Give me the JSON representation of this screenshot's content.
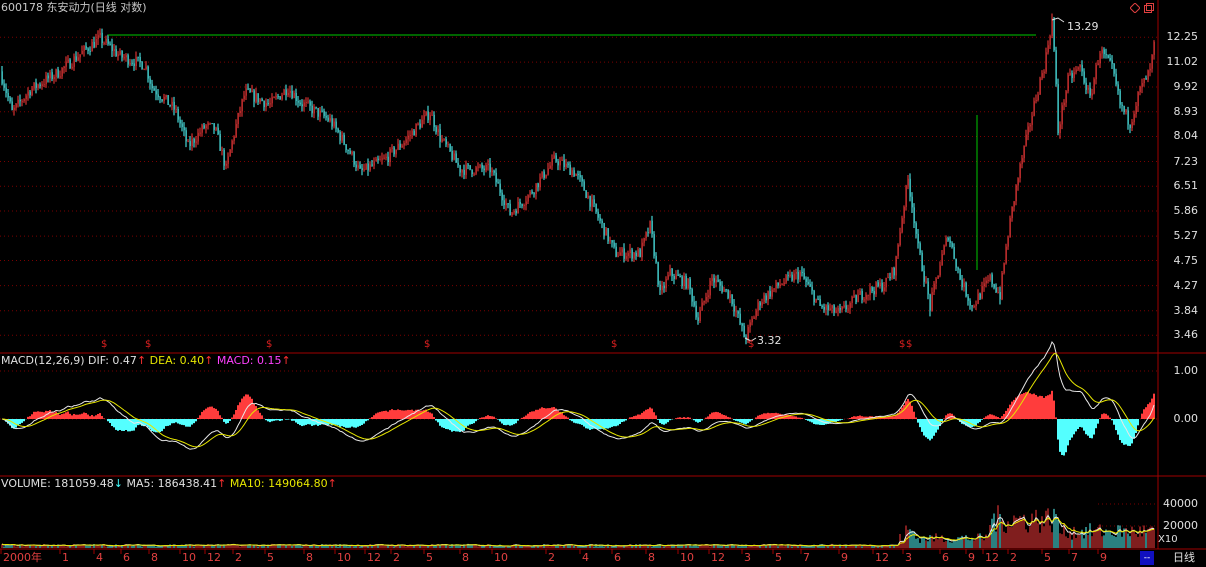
{
  "header": {
    "title": "600178 东安动力(日线 对数)"
  },
  "price_axis": [
    "12.25",
    "11.02",
    "9.92",
    "8.93",
    "8.04",
    "7.23",
    "6.51",
    "5.86",
    "5.27",
    "4.75",
    "4.27",
    "3.84",
    "3.46"
  ],
  "price_annotations": {
    "high": "13.29",
    "low": "3.32"
  },
  "macd": {
    "title": "MACD(12,26,9)",
    "dif_label": "DIF: 0.47",
    "dif_arrow": "↑",
    "dea_label": "DEA: 0.40",
    "dea_arrow": "↑",
    "macd_label": "MACD: 0.15",
    "macd_arrow": "↑",
    "axis": [
      "1.00",
      "0.00"
    ]
  },
  "volume": {
    "label": "VOLUME: 181059.48",
    "label_arrow": "↓",
    "ma5_label": "MA5: 186438.41",
    "ma5_arrow": "↑",
    "ma10_label": "MA10: 149064.80",
    "ma10_arrow": "↑",
    "axis": [
      "40000",
      "20000"
    ],
    "unit": "X10"
  },
  "x_axis": [
    "2000年",
    "1",
    "4",
    "6",
    "8",
    "10",
    "12",
    "2",
    "5",
    "8",
    "10",
    "12",
    "2",
    "5",
    "8",
    "10",
    "2",
    "4",
    "6",
    "8",
    "10",
    "12",
    "3",
    "5",
    "7",
    "9",
    "12",
    "3",
    "6",
    "9",
    "12",
    "2",
    "5",
    "7",
    "9"
  ],
  "marker_symbol": "$",
  "controls": {
    "period_label": "日线",
    "blue_button": "--"
  },
  "icons": [
    "diamond-icon",
    "restore-icon"
  ],
  "colors": {
    "up": "#ff3c3c",
    "down": "#54ffff",
    "grid": "#7a0000",
    "resistance": "#00c800",
    "dif": "#e8e8e8",
    "dea": "#e6e600"
  }
}
